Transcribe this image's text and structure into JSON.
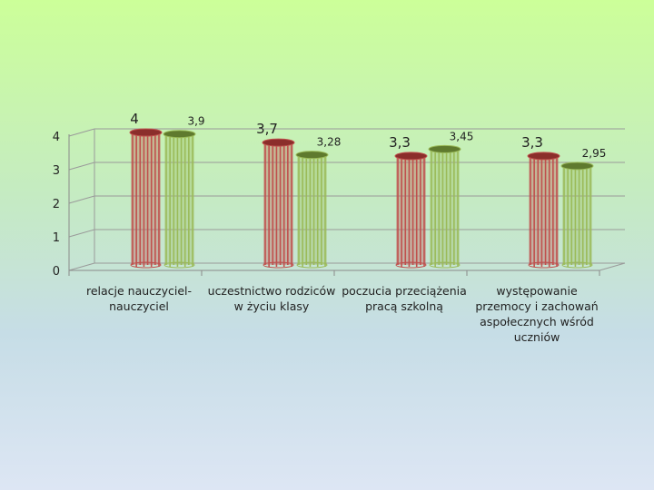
{
  "chart_data": {
    "type": "bar",
    "title": "",
    "xlabel": "",
    "ylabel": "",
    "ylim": [
      0,
      4
    ],
    "yticks": [
      "0",
      "1",
      "2",
      "3",
      "4"
    ],
    "grid": true,
    "legend": "none",
    "categories": [
      [
        "relacje nauczyciel-",
        "nauczyciel"
      ],
      [
        "uczestnictwo rodziców",
        "w życiu klasy"
      ],
      [
        "poczucia przeciążenia",
        "pracą szkolną"
      ],
      [
        "występowanie",
        "przemocy i zachowań",
        "aspołecznych wśród",
        "uczniów"
      ]
    ],
    "series": [
      {
        "values": [
          4,
          3.7,
          3.3,
          3.3
        ],
        "labels": [
          "4",
          "3,7",
          "3,3",
          "3,3"
        ],
        "color": "#c0504d",
        "color_dark": "#8b2e2b"
      },
      {
        "values": [
          3.9,
          3.28,
          3.45,
          2.95
        ],
        "labels": [
          "3,9",
          "3,28",
          "3,45",
          "2,95"
        ],
        "color": "#9bbb59",
        "color_dark": "#5f7a2e"
      }
    ]
  }
}
